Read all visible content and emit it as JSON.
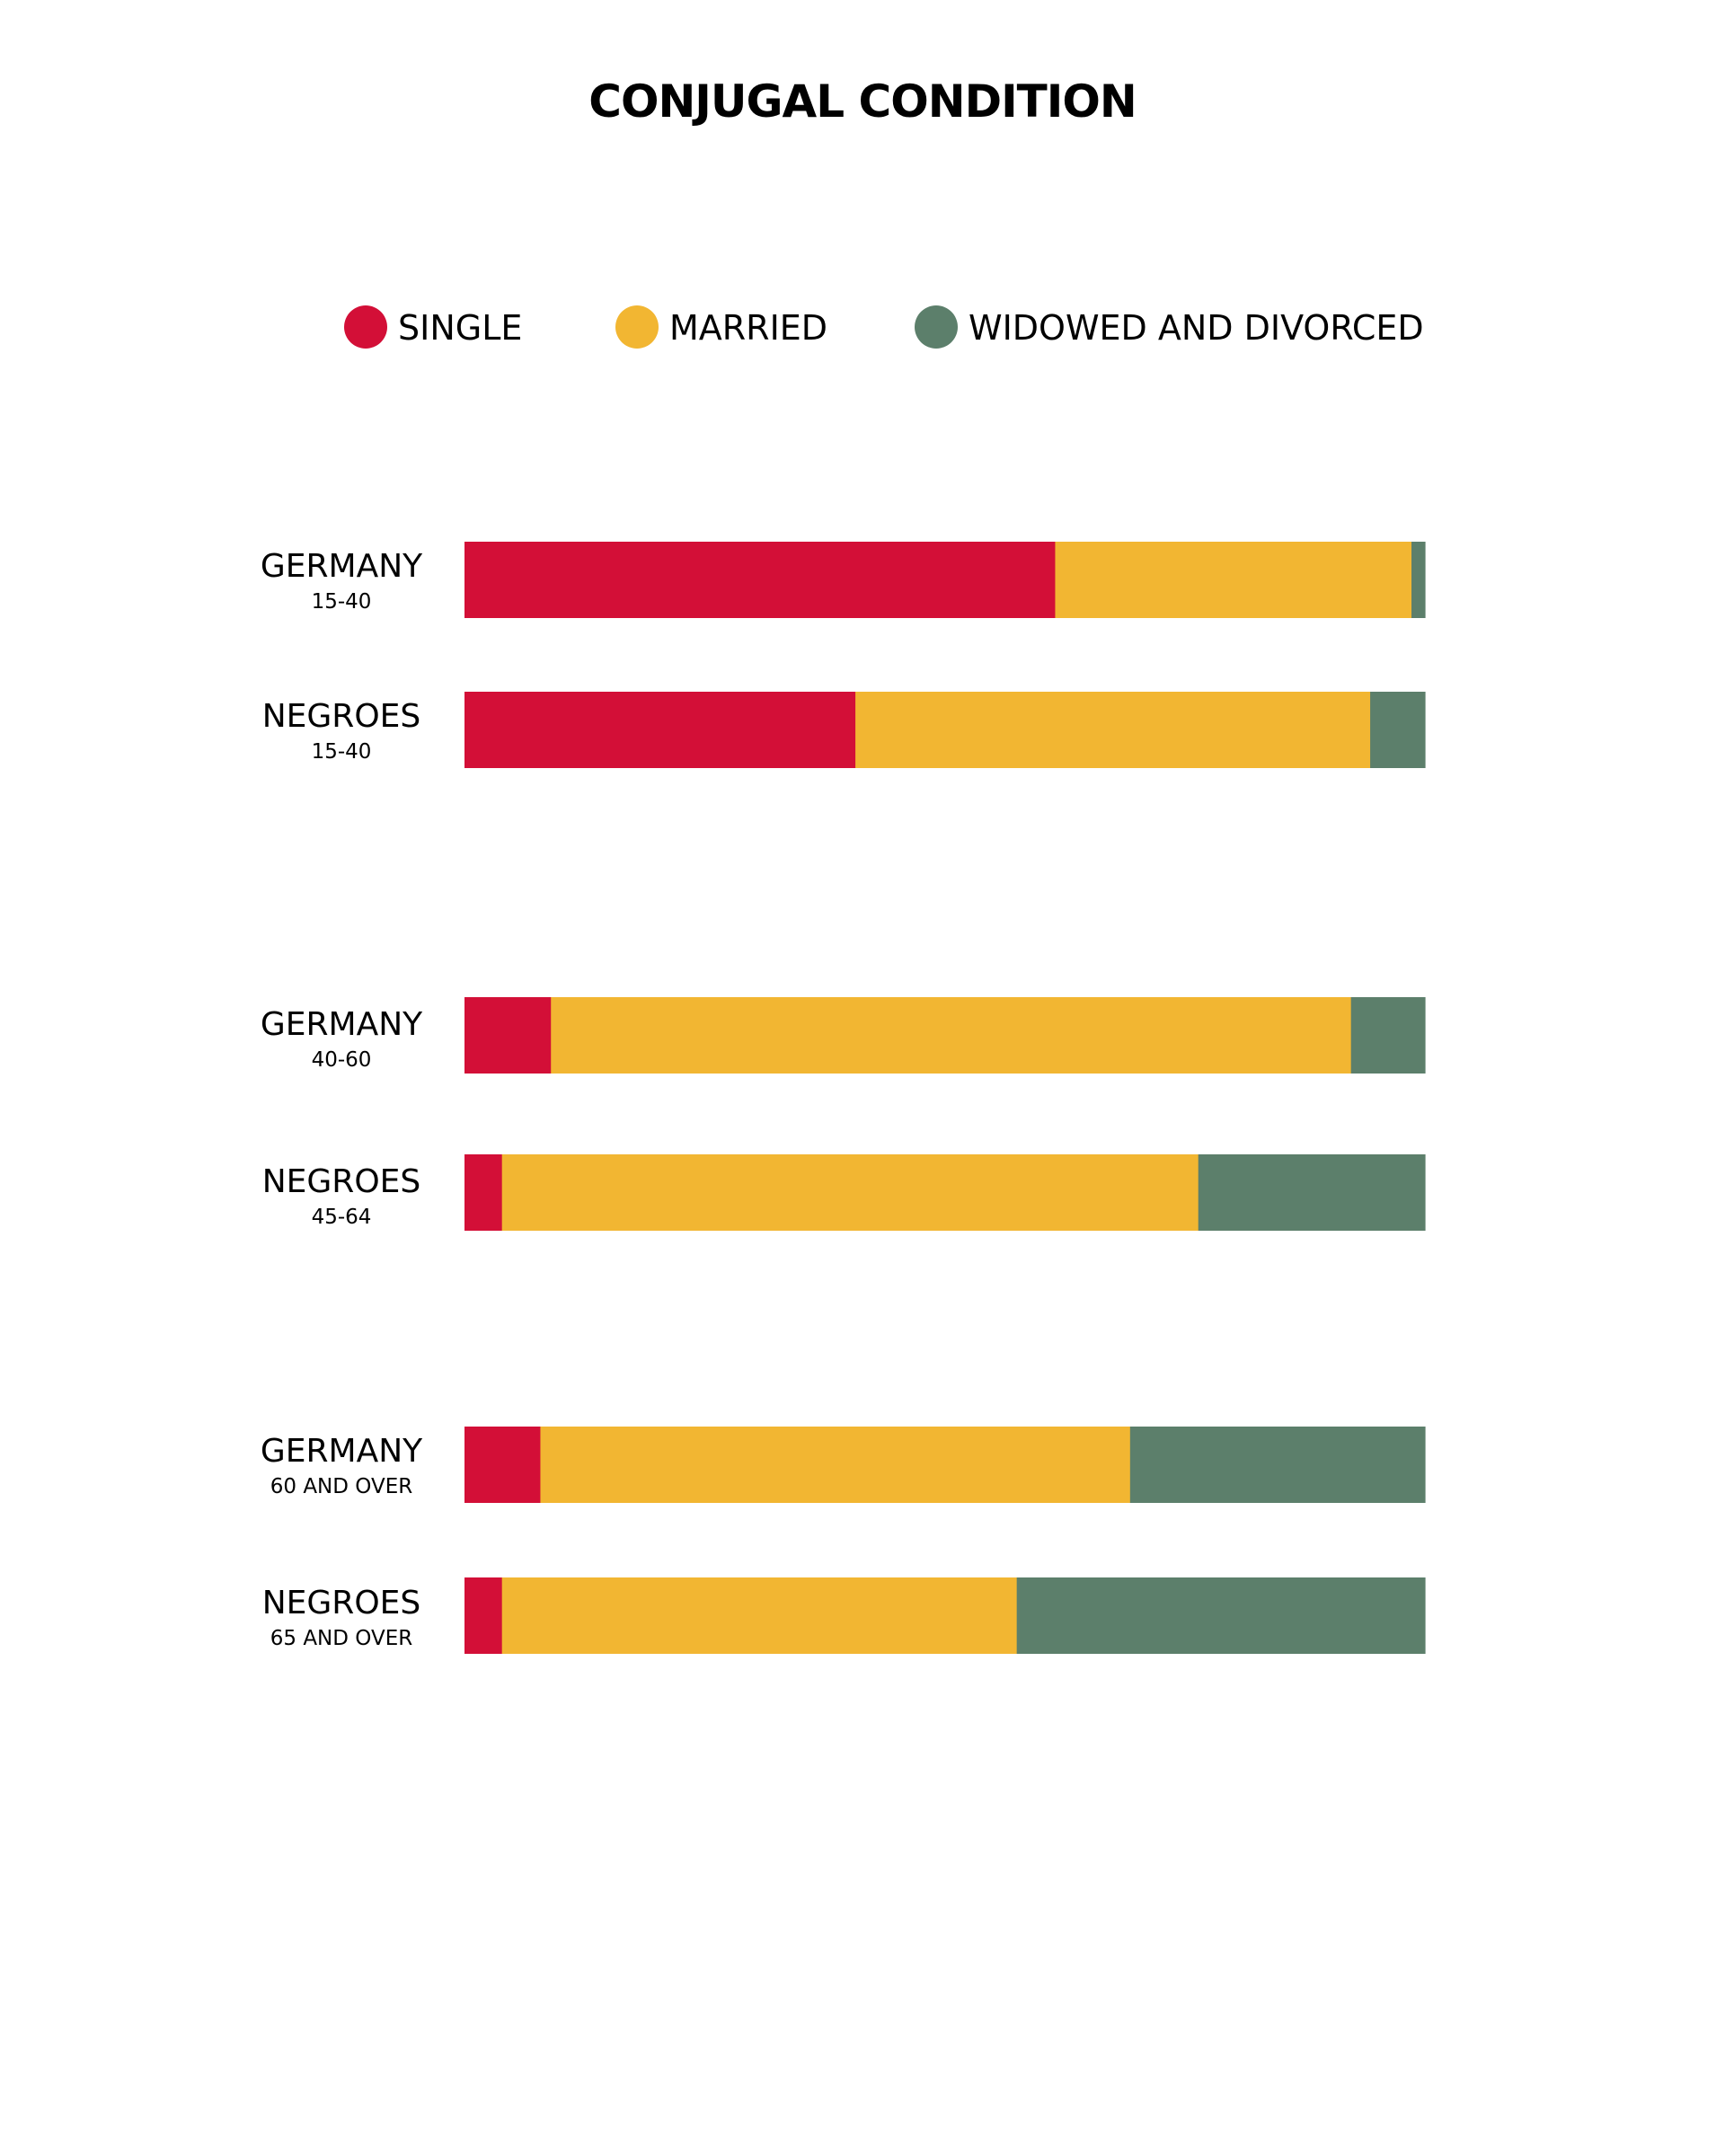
{
  "chart_data": {
    "type": "bar",
    "orientation": "horizontal",
    "stacked": true,
    "normalized": true,
    "title": "CONJUGAL CONDITION",
    "xlabel": "",
    "ylabel": "",
    "xlim": [
      0,
      100
    ],
    "grid": false,
    "legend_position": "top",
    "legend": [
      {
        "name": "SINGLE",
        "color": "#d30f37"
      },
      {
        "name": "MARRIED",
        "color": "#f2b632"
      },
      {
        "name": "WIDOWED AND DIVORCED",
        "color": "#5c7f6b"
      }
    ],
    "categories": [
      {
        "name": "GERMANY",
        "range": "15-40",
        "group": 0
      },
      {
        "name": "NEGROES",
        "range": "15-40",
        "group": 0
      },
      {
        "name": "GERMANY",
        "range": "40-60",
        "group": 1
      },
      {
        "name": "NEGROES",
        "range": "45-64",
        "group": 1
      },
      {
        "name": "GERMANY",
        "range": "60 AND OVER",
        "group": 2
      },
      {
        "name": "NEGROES",
        "range": "65 AND OVER",
        "group": 2
      }
    ],
    "series": [
      {
        "name": "SINGLE",
        "values": [
          61.5,
          40.7,
          9.0,
          3.9,
          7.9,
          3.9
        ]
      },
      {
        "name": "MARRIED",
        "values": [
          37.1,
          53.6,
          83.3,
          72.5,
          61.4,
          53.6
        ]
      },
      {
        "name": "WIDOWED AND DIVORCED",
        "values": [
          1.4,
          5.7,
          7.7,
          23.6,
          30.7,
          42.5
        ]
      }
    ]
  }
}
